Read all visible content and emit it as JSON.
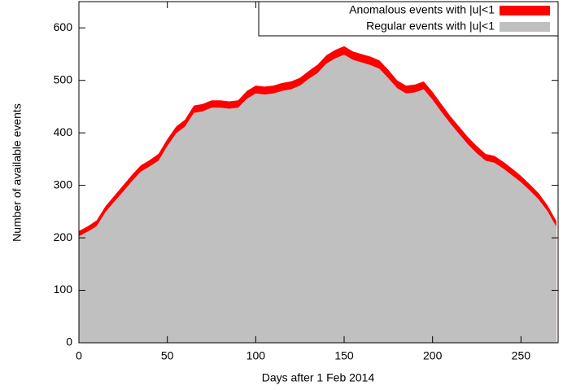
{
  "chart_data": {
    "type": "stacked-area",
    "xlabel": "Days after 1 Feb 2014",
    "ylabel": "Number of available events",
    "x": [
      0,
      5,
      10,
      15,
      20,
      25,
      30,
      35,
      40,
      45,
      50,
      55,
      60,
      65,
      70,
      75,
      80,
      85,
      90,
      95,
      100,
      105,
      110,
      115,
      120,
      125,
      130,
      135,
      140,
      145,
      150,
      155,
      160,
      165,
      170,
      175,
      180,
      185,
      190,
      195,
      200,
      205,
      210,
      215,
      220,
      225,
      230,
      235,
      240,
      245,
      250,
      255,
      260,
      265,
      270
    ],
    "series": [
      {
        "name": "Anomalous events with |u|<1",
        "color": "#ff0000",
        "values": [
          10,
          10,
          11,
          11,
          11,
          12,
          12,
          12,
          12,
          13,
          13,
          13,
          13,
          14,
          14,
          14,
          14,
          14,
          14,
          15,
          15,
          15,
          15,
          15,
          15,
          15,
          15,
          16,
          16,
          16,
          16,
          16,
          16,
          16,
          16,
          16,
          15,
          15,
          15,
          15,
          15,
          15,
          14,
          14,
          14,
          14,
          13,
          13,
          13,
          13,
          12,
          12,
          12,
          11,
          11
        ]
      },
      {
        "name": "Regular events with |u|<1",
        "color": "#c0c0c0",
        "values": [
          203,
          212,
          222,
          249,
          269,
          288,
          308,
          326,
          336,
          347,
          375,
          399,
          412,
          438,
          441,
          448,
          448,
          446,
          448,
          465,
          475,
          473,
          475,
          480,
          483,
          490,
          503,
          514,
          532,
          542,
          549,
          539,
          534,
          529,
          522,
          504,
          485,
          475,
          477,
          483,
          463,
          440,
          418,
          398,
          378,
          361,
          347,
          343,
          332,
          319,
          306,
          290,
          273,
          251,
          221
        ]
      }
    ],
    "xlim": [
      0,
      271
    ],
    "xticks": [
      0,
      50,
      100,
      150,
      200,
      250
    ],
    "ylim": [
      0,
      650
    ],
    "yticks": [
      0,
      100,
      200,
      300,
      400,
      500,
      600
    ],
    "legend": "top-right"
  }
}
